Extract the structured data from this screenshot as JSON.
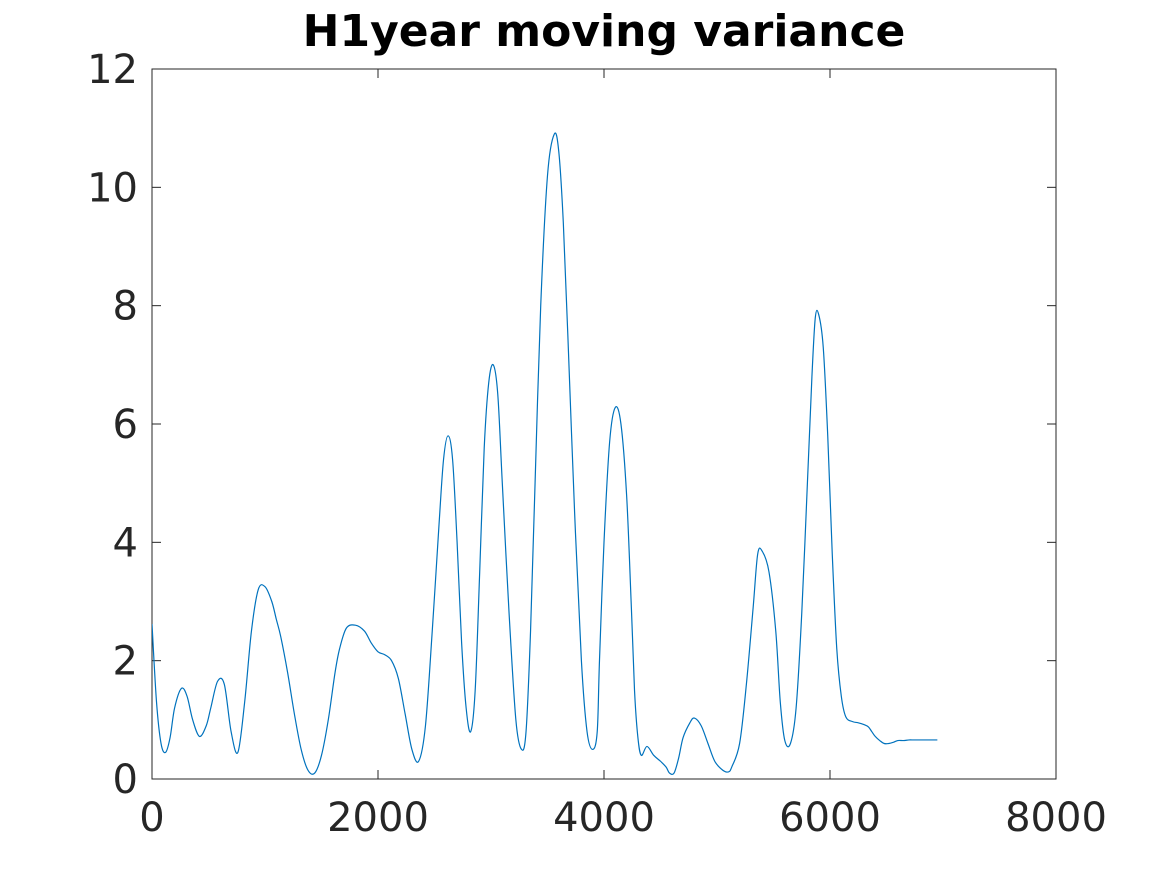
{
  "chart_data": {
    "type": "line",
    "title": "H1year moving variance",
    "xlabel": "",
    "ylabel": "",
    "xlim": [
      0,
      8000
    ],
    "ylim": [
      0,
      12
    ],
    "xticks": [
      0,
      2000,
      4000,
      6000,
      8000
    ],
    "yticks": [
      0,
      2,
      4,
      6,
      8,
      10,
      12
    ],
    "xtick_labels": [
      "0",
      "2000",
      "4000",
      "6000",
      "8000"
    ],
    "ytick_labels": [
      "0",
      "2",
      "4",
      "6",
      "8",
      "10",
      "12"
    ],
    "grid": false,
    "line_color": "#0072BD",
    "axis_color": "#262626",
    "series": [
      {
        "x": [
          0,
          40,
          80,
          120,
          160,
          200,
          260,
          310,
          360,
          420,
          480,
          520,
          580,
          640,
          700,
          760,
          820,
          880,
          940,
          1000,
          1060,
          1100,
          1140,
          1200,
          1260,
          1320,
          1380,
          1440,
          1500,
          1560,
          1620,
          1660,
          1720,
          1800,
          1880,
          1940,
          2000,
          2060,
          2120,
          2180,
          2240,
          2300,
          2360,
          2420,
          2480,
          2540,
          2580,
          2620,
          2660,
          2700,
          2740,
          2780,
          2820,
          2860,
          2900,
          2940,
          2980,
          3020,
          3060,
          3100,
          3160,
          3220,
          3270,
          3310,
          3350,
          3390,
          3440,
          3500,
          3560,
          3600,
          3640,
          3680,
          3740,
          3800,
          3850,
          3900,
          3940,
          3960,
          4000,
          4050,
          4100,
          4150,
          4200,
          4240,
          4270,
          4300,
          4330,
          4380,
          4440,
          4500,
          4550,
          4580,
          4620,
          4660,
          4700,
          4760,
          4800,
          4860,
          4920,
          4980,
          5050,
          5100,
          5130,
          5200,
          5260,
          5320,
          5360,
          5400,
          5460,
          5520,
          5560,
          5600,
          5650,
          5700,
          5750,
          5800,
          5840,
          5870,
          5900,
          5940,
          5980,
          6020,
          6060,
          6100,
          6140,
          6200,
          6250,
          6300,
          6340,
          6370,
          6400,
          6440,
          6480,
          6520,
          6560,
          6600,
          6650,
          6700,
          6740,
          6800,
          6850,
          6900,
          6950
        ],
        "y": [
          2.62,
          1.3,
          0.6,
          0.45,
          0.7,
          1.2,
          1.53,
          1.4,
          1.0,
          0.72,
          0.9,
          1.2,
          1.65,
          1.6,
          0.8,
          0.45,
          1.3,
          2.5,
          3.2,
          3.25,
          3.0,
          2.7,
          2.4,
          1.8,
          1.1,
          0.5,
          0.15,
          0.1,
          0.4,
          1.0,
          1.8,
          2.2,
          2.55,
          2.6,
          2.5,
          2.3,
          2.15,
          2.1,
          2.0,
          1.7,
          1.1,
          0.5,
          0.3,
          0.9,
          2.5,
          4.3,
          5.4,
          5.8,
          5.4,
          4.0,
          2.3,
          1.2,
          0.8,
          1.5,
          3.5,
          5.6,
          6.7,
          7.0,
          6.5,
          5.0,
          2.8,
          1.0,
          0.5,
          0.8,
          2.5,
          5.0,
          8.0,
          10.2,
          10.9,
          10.6,
          9.4,
          7.5,
          4.5,
          2.0,
          0.8,
          0.5,
          0.8,
          2.0,
          4.0,
          5.7,
          6.28,
          6.0,
          4.8,
          3.0,
          1.5,
          0.7,
          0.4,
          0.55,
          0.4,
          0.3,
          0.2,
          0.1,
          0.1,
          0.35,
          0.7,
          0.95,
          1.03,
          0.9,
          0.6,
          0.3,
          0.15,
          0.12,
          0.2,
          0.6,
          1.6,
          2.9,
          3.8,
          3.85,
          3.5,
          2.5,
          1.3,
          0.65,
          0.6,
          1.2,
          2.8,
          5.0,
          6.8,
          7.8,
          7.85,
          7.3,
          5.8,
          3.8,
          2.2,
          1.4,
          1.05,
          0.97,
          0.95,
          0.92,
          0.88,
          0.8,
          0.72,
          0.65,
          0.6,
          0.6,
          0.62,
          0.65,
          0.65,
          0.66,
          0.66,
          0.66,
          0.66,
          0.66,
          0.66
        ]
      }
    ]
  }
}
